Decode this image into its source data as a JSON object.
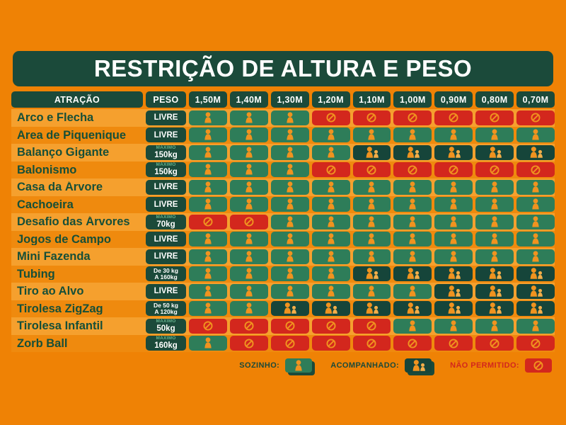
{
  "chart_data": {
    "type": "table",
    "title": "RESTRIÇÃO DE ALTURA E PESO",
    "columns": {
      "attraction": "ATRAÇÃO",
      "weight": "PESO",
      "heights": [
        "1,50M",
        "1,40M",
        "1,30M",
        "1,20M",
        "1,10M",
        "1,00M",
        "0,90M",
        "0,80M",
        "0,70M"
      ]
    },
    "status_key": {
      "S": "sozinho",
      "A": "acompanhado",
      "N": "nao_permitido"
    },
    "rows": [
      {
        "name": "Arco e Flecha",
        "weight_style": "livre",
        "weight_lines": [
          "LIVRE"
        ],
        "cells": "SSSNNNNNN"
      },
      {
        "name": "Área de Piquenique",
        "weight_style": "livre",
        "weight_lines": [
          "LIVRE"
        ],
        "cells": "SSSSSSSSS"
      },
      {
        "name": "Balanço Gigante",
        "weight_style": "max",
        "weight_lines": [
          "MÁXIMO",
          "150kg"
        ],
        "cells": "SSSSAAAAA"
      },
      {
        "name": "Balonismo",
        "weight_style": "max",
        "weight_lines": [
          "MÁXIMO",
          "150kg"
        ],
        "cells": "SSSNNNNNN"
      },
      {
        "name": "Casa da Árvore",
        "weight_style": "livre",
        "weight_lines": [
          "LIVRE"
        ],
        "cells": "SSSSSSSSS"
      },
      {
        "name": "Cachoeira",
        "weight_style": "livre",
        "weight_lines": [
          "LIVRE"
        ],
        "cells": "SSSSSSSSS"
      },
      {
        "name": "Desafio das Árvores",
        "weight_style": "max",
        "weight_lines": [
          "MÁXIMO",
          "70kg"
        ],
        "cells": "NNSSSSSSS"
      },
      {
        "name": "Jogos de Campo",
        "weight_style": "livre",
        "weight_lines": [
          "LIVRE"
        ],
        "cells": "SSSSSSSSS"
      },
      {
        "name": "Mini Fazenda",
        "weight_style": "livre",
        "weight_lines": [
          "LIVRE"
        ],
        "cells": "SSSSSSSSS"
      },
      {
        "name": "Tubing",
        "weight_style": "range",
        "weight_lines": [
          "De 30 kg",
          "A 160kg"
        ],
        "cells": "SSSSAAAAA"
      },
      {
        "name": "Tiro ao Alvo",
        "weight_style": "livre",
        "weight_lines": [
          "LIVRE"
        ],
        "cells": "SSSSSSAAA"
      },
      {
        "name": "Tirolesa ZigZag",
        "weight_style": "range",
        "weight_lines": [
          "De 50 kg",
          "A 120kg"
        ],
        "cells": "SSAAAAAAA"
      },
      {
        "name": "Tirolesa Infantil",
        "weight_style": "max",
        "weight_lines": [
          "MÁXIMO",
          "50kg"
        ],
        "cells": "NNNNNSSSS"
      },
      {
        "name": "Zorb Ball",
        "weight_style": "max",
        "weight_lines": [
          "MÁXIMO",
          "160kg"
        ],
        "cells": "SNNNNNNNN"
      }
    ],
    "legend": [
      {
        "label": "SOZINHO:",
        "status": "sozinho"
      },
      {
        "label": "ACOMPANHADO:",
        "status": "acompanhado"
      },
      {
        "label": "NÃO PERMITIDO:",
        "status": "nao_permitido"
      }
    ]
  },
  "colors": {
    "background": "#EF8205",
    "row_stripe_light": "#F5A02E",
    "row_stripe_dark": "#EF8A0E",
    "dark_green": "#1B4A3A",
    "cell_green_sozinho": "#2E7D59",
    "cell_dark_acompanhado": "#16453A",
    "cell_red_nao_permitido": "#D3271D",
    "icon_orange": "#F0931F",
    "icon_orange_light": "#F4AE49",
    "attraction_text_green": "#164F38",
    "weight_label_teal": "#63B08C",
    "red_text": "#D3271D",
    "white": "#FFFFFF"
  }
}
